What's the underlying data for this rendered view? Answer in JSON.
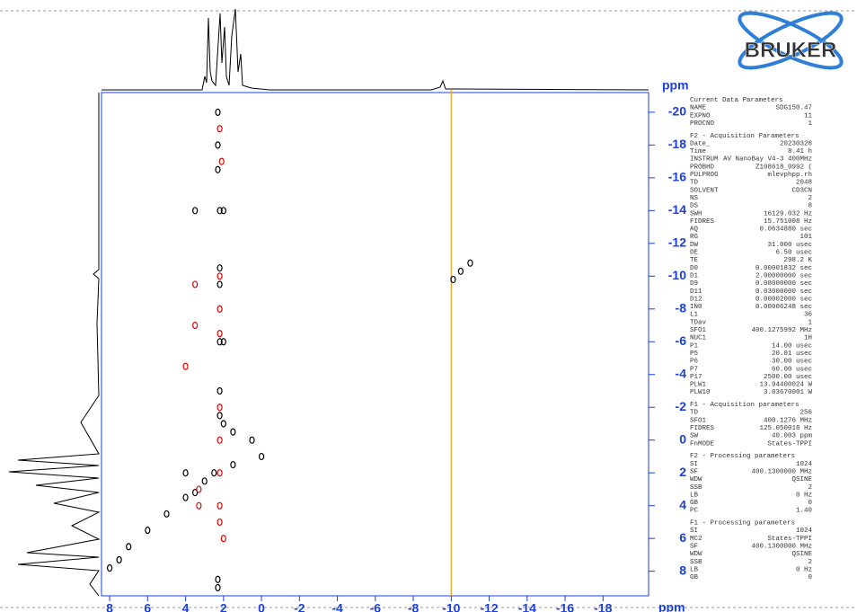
{
  "chart_data": {
    "type": "scatter",
    "x_label": "ppm",
    "y_label": "ppm",
    "xlim": [
      8.43,
      -20.4
    ],
    "ylim": [
      -21.2,
      9.5
    ],
    "xticks": [
      8,
      6,
      4,
      2,
      0,
      -2,
      -4,
      -6,
      -8,
      -10,
      -12,
      -14,
      -16,
      -18
    ],
    "yticks": [
      -20,
      -18,
      -16,
      -14,
      -12,
      -10,
      -8,
      -6,
      -4,
      -2,
      0,
      2,
      4,
      6,
      8
    ],
    "cursor_x": -10,
    "cursor_color": "#f0a020",
    "axis_color": "#1b3fe0",
    "series": [
      {
        "color": "#000000",
        "x": [
          2.3,
          2.3,
          2.3,
          2.2,
          2.0,
          3.5,
          2.2,
          2.2,
          2.2,
          2.0,
          2.2,
          2.2,
          2.0,
          1.5,
          0.5,
          0.0,
          1.5,
          2.5,
          3.0,
          4.0,
          3.5,
          4.0,
          5.0,
          6.0,
          7.0,
          7.5,
          8.0,
          -10.1,
          -10.5,
          -11.0,
          2.3,
          2.3
        ],
        "y": [
          -20,
          -18,
          -16.5,
          -14,
          -14,
          -14,
          -10.5,
          -9.5,
          -6,
          -6,
          -3,
          -1.5,
          -1,
          -0.5,
          0,
          1,
          1.5,
          2,
          2.5,
          2,
          3.2,
          3.5,
          4.5,
          5.5,
          6.5,
          7.3,
          7.8,
          -9.8,
          -10.3,
          -10.8,
          8.5,
          9
        ]
      },
      {
        "color": "#e00000",
        "x": [
          2.2,
          2.2,
          2.2,
          3.5,
          3.5,
          4.0,
          2.2,
          2.1,
          2.2,
          2.2,
          2.2,
          2.2,
          2.2,
          3.3,
          3.3,
          2.0
        ],
        "y": [
          -10,
          -8,
          -6.5,
          -9.5,
          -7,
          -4.5,
          -19,
          -17,
          -2,
          0,
          2,
          4,
          5,
          3,
          4,
          6
        ]
      }
    ]
  },
  "logo": "BRUKER",
  "parameters": [
    {
      "title": "Current Data Parameters",
      "rows": [
        [
          "NAME",
          "SDG150.47"
        ],
        [
          "EXPNO",
          "11"
        ],
        [
          "PROCNO",
          "1"
        ]
      ]
    },
    {
      "title": "F2 - Acquisition Parameters",
      "rows": [
        [
          "Date_",
          "20230328"
        ],
        [
          "Time",
          "8.41 h"
        ],
        [
          "INSTRUM",
          "AV NanoBay V4-3 400MHz"
        ],
        [
          "PROBHD",
          "Z108618_0992 ("
        ],
        [
          "PULPROG",
          "mlevphpp.rh"
        ],
        [
          "TD",
          "2048"
        ],
        [
          "SOLVENT",
          "CD3CN"
        ],
        [
          "NS",
          "2"
        ],
        [
          "DS",
          "8"
        ],
        [
          "SWH",
          "16129.032 Hz"
        ],
        [
          "FIDRES",
          "15.751008 Hz"
        ],
        [
          "AQ",
          "0.0634880 sec"
        ],
        [
          "RG",
          "101"
        ],
        [
          "DW",
          "31.000 usec"
        ],
        [
          "DE",
          "6.50 usec"
        ],
        [
          "TE",
          "298.2 K"
        ],
        [
          "D0",
          "0.00001832 sec"
        ],
        [
          "D1",
          "2.00000000 sec"
        ],
        [
          "D9",
          "0.08000000 sec"
        ],
        [
          "D11",
          "0.03000000 sec"
        ],
        [
          "D12",
          "0.00002000 sec"
        ],
        [
          "IN0",
          "0.00006248 sec"
        ],
        [
          "L1",
          "36"
        ],
        [
          "TDav",
          "1"
        ],
        [
          "SFO1",
          "400.1275992 MHz"
        ],
        [
          "NUC1",
          "1H"
        ],
        [
          "P1",
          "14.00 usec"
        ],
        [
          "P5",
          "20.01 usec"
        ],
        [
          "P6",
          "30.00 usec"
        ],
        [
          "P7",
          "60.00 usec"
        ],
        [
          "P17",
          "2500.00 usec"
        ],
        [
          "PLW1",
          "13.94400024 W"
        ],
        [
          "PLW10",
          "3.03670001 W"
        ]
      ]
    },
    {
      "title": "F1 - Acquisition parameters",
      "rows": [
        [
          "TD",
          "256"
        ],
        [
          "SFO1",
          "400.1276 MHz"
        ],
        [
          "FIDRES",
          "125.050018 Hz"
        ],
        [
          "SW",
          "40.003 ppm"
        ],
        [
          "FnMODE",
          "States-TPPI"
        ]
      ]
    },
    {
      "title": "F2 - Processing parameters",
      "rows": [
        [
          "SI",
          "1024"
        ],
        [
          "SF",
          "400.1300000 MHz"
        ],
        [
          "WDW",
          "QSINE"
        ],
        [
          "SSB",
          "2"
        ],
        [
          "LB",
          "0 Hz"
        ],
        [
          "GB",
          "0"
        ],
        [
          "PC",
          "1.40"
        ]
      ]
    },
    {
      "title": "F1 - Processing parameters",
      "rows": [
        [
          "SI",
          "1024"
        ],
        [
          "MC2",
          "States-TPPI"
        ],
        [
          "SF",
          "400.1300000 MHz"
        ],
        [
          "WDW",
          "QSINE"
        ],
        [
          "SSB",
          "2"
        ],
        [
          "LB",
          "0 Hz"
        ],
        [
          "GB",
          "0"
        ]
      ]
    }
  ]
}
